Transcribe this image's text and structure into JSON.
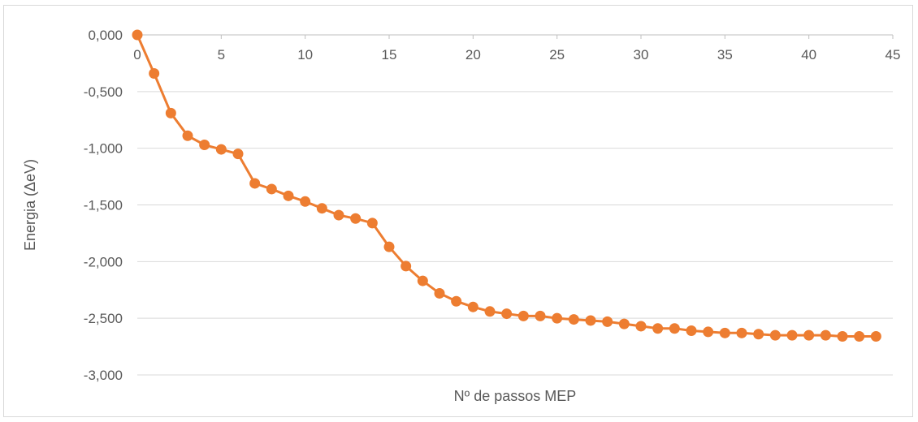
{
  "chart_data": {
    "type": "line",
    "title": "",
    "xlabel": "Nº de passos MEP",
    "ylabel": "Energia (ΔeV)",
    "xlim": [
      0,
      45
    ],
    "ylim": [
      -3,
      0
    ],
    "x_ticks": [
      "0",
      "5",
      "10",
      "15",
      "20",
      "25",
      "30",
      "35",
      "40",
      "45"
    ],
    "y_ticks": [
      "0,000",
      "-0,500",
      "-1,000",
      "-1,500",
      "-2,000",
      "-2,500",
      "-3,000"
    ],
    "x_tick_values": [
      0,
      5,
      10,
      15,
      20,
      25,
      30,
      35,
      40,
      45
    ],
    "y_tick_values": [
      0,
      -0.5,
      -1,
      -1.5,
      -2,
      -2.5,
      -3
    ],
    "grid": "horizontal",
    "legend": "none",
    "series": [
      {
        "color": "#ed7d31",
        "x": [
          0,
          1,
          2,
          3,
          4,
          5,
          6,
          7,
          8,
          9,
          10,
          11,
          12,
          13,
          14,
          15,
          16,
          17,
          18,
          19,
          20,
          21,
          22,
          23,
          24,
          25,
          26,
          27,
          28,
          29,
          30,
          31,
          32,
          33,
          34,
          35,
          36,
          37,
          38,
          39,
          40,
          41,
          42,
          43,
          44
        ],
        "y": [
          0.0,
          -0.34,
          -0.69,
          -0.89,
          -0.97,
          -1.01,
          -1.05,
          -1.31,
          -1.36,
          -1.42,
          -1.47,
          -1.53,
          -1.59,
          -1.62,
          -1.66,
          -1.87,
          -2.04,
          -2.17,
          -2.28,
          -2.35,
          -2.4,
          -2.44,
          -2.46,
          -2.48,
          -2.48,
          -2.5,
          -2.51,
          -2.52,
          -2.53,
          -2.55,
          -2.57,
          -2.59,
          -2.59,
          -2.61,
          -2.62,
          -2.63,
          -2.63,
          -2.64,
          -2.65,
          -2.65,
          -2.65,
          -2.65,
          -2.66,
          -2.66,
          -2.66
        ]
      }
    ]
  }
}
